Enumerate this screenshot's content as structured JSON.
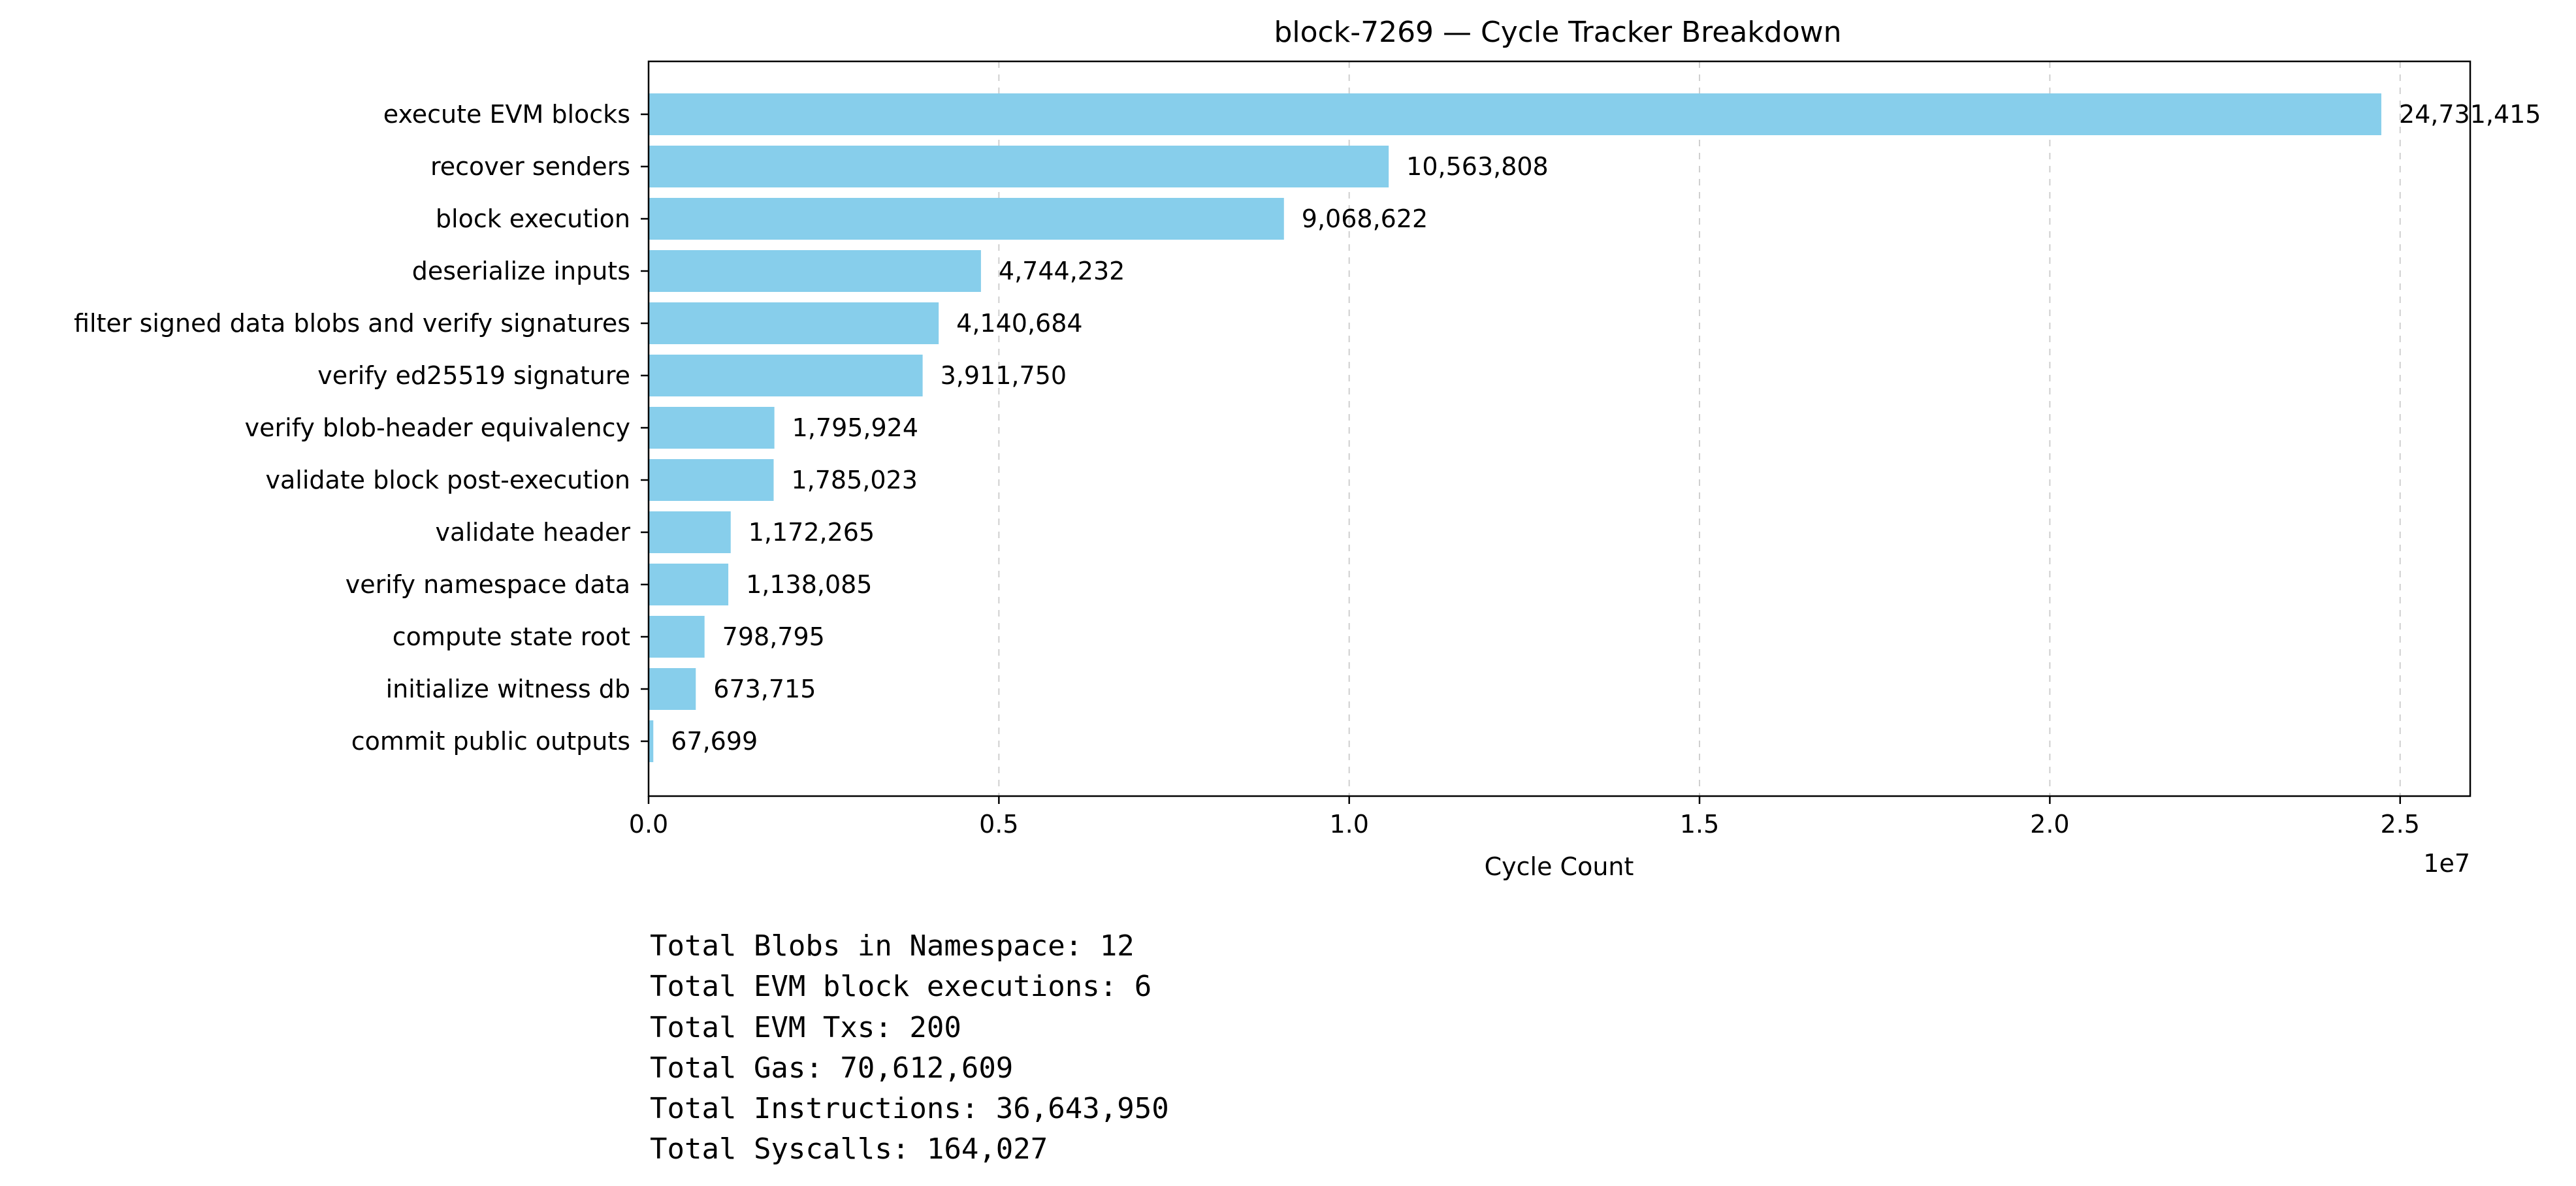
{
  "chart_data": {
    "type": "bar",
    "orientation": "horizontal",
    "title": "block-7269 — Cycle Tracker Breakdown",
    "xlabel": "Cycle Count",
    "ylabel": "",
    "x_offset_label": "1e7",
    "xlim": [
      0,
      26000000
    ],
    "x_ticks": [
      0,
      5000000,
      10000000,
      15000000,
      20000000,
      25000000
    ],
    "x_tick_labels": [
      "0.0",
      "0.5",
      "1.0",
      "1.5",
      "2.0",
      "2.5"
    ],
    "grid": "x-dashed",
    "legend": "none",
    "bar_color": "#87ceeb",
    "categories": [
      "execute EVM blocks",
      "recover senders",
      "block execution",
      "deserialize inputs",
      "filter signed data blobs and verify signatures",
      "verify ed25519 signature",
      "verify blob-header equivalency",
      "validate block post-execution",
      "validate header",
      "verify namespace data",
      "compute state root",
      "initialize witness db",
      "commit public outputs"
    ],
    "values": [
      24731415,
      10563808,
      9068622,
      4744232,
      4140684,
      3911750,
      1795924,
      1785023,
      1172265,
      1138085,
      798795,
      673715,
      67699
    ],
    "value_labels": [
      "24,731,415",
      "10,563,808",
      "9,068,622",
      "4,744,232",
      "4,140,684",
      "3,911,750",
      "1,795,924",
      "1,785,023",
      "1,172,265",
      "1,138,085",
      "798,795",
      "673,715",
      "67,699"
    ]
  },
  "stats": [
    "Total Blobs in Namespace: 12",
    "Total EVM block executions: 6",
    "Total EVM Txs: 200",
    "Total Gas: 70,612,609",
    "Total Instructions: 36,643,950",
    "Total Syscalls: 164,027"
  ]
}
